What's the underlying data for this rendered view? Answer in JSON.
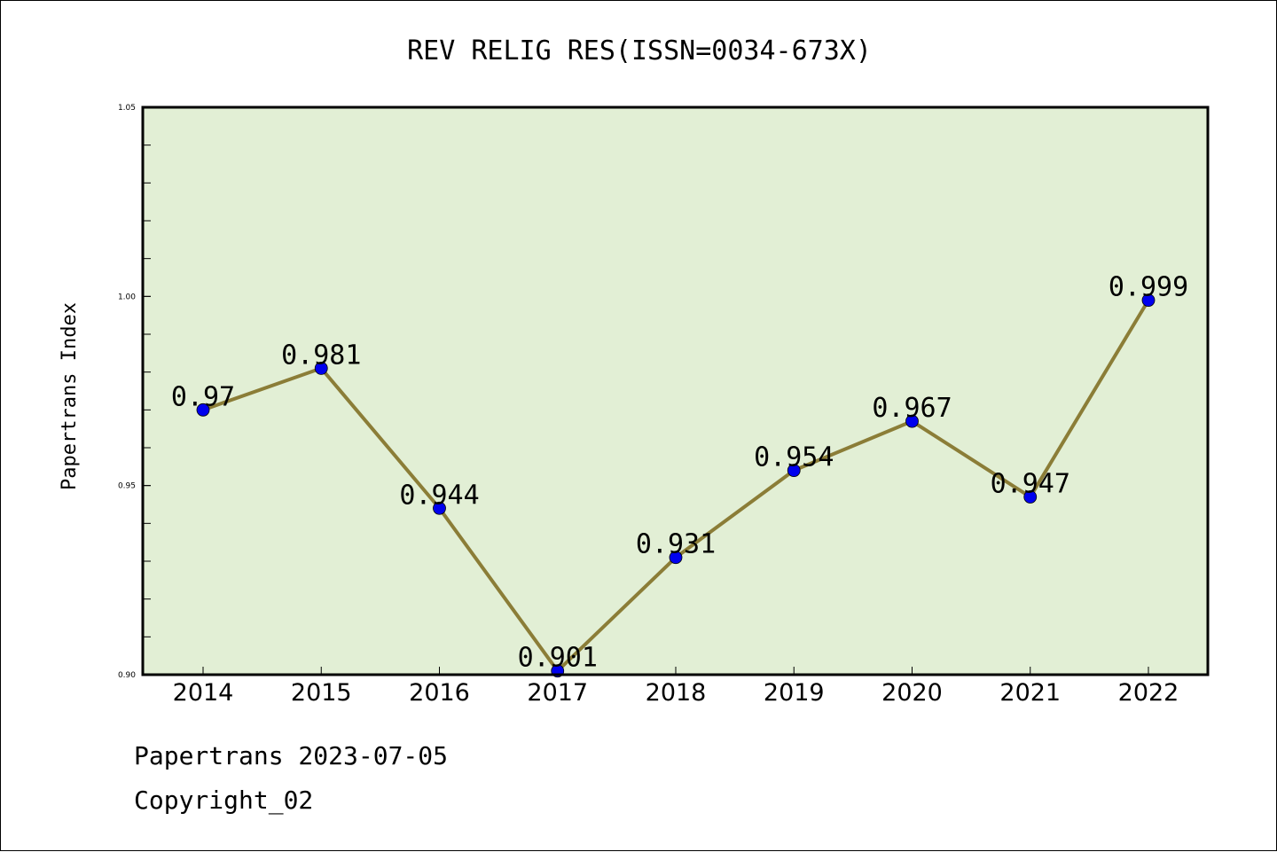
{
  "footer": {
    "date_line": "Papertrans 2023-07-05",
    "copyright": "Copyright_02"
  },
  "colors": {
    "plot_background": "#e2efd5",
    "line": "#8b7d37",
    "marker": "#0000ee",
    "frame": "#000000"
  },
  "chart_data": {
    "type": "line",
    "title": "REV RELIG RES(ISSN=0034-673X)",
    "xlabel": "",
    "ylabel": "Papertrans Index",
    "categories": [
      "2014",
      "2015",
      "2016",
      "2017",
      "2018",
      "2019",
      "2020",
      "2021",
      "2022"
    ],
    "series": [
      {
        "values": [
          0.97,
          0.981,
          0.944,
          0.901,
          0.931,
          0.954,
          0.967,
          0.947,
          0.999
        ],
        "labels": [
          "0.97",
          "0.981",
          "0.944",
          "0.901",
          "0.931",
          "0.954",
          "0.967",
          "0.947",
          "0.999"
        ]
      }
    ],
    "ylim": [
      0.9,
      1.05
    ],
    "yticks": [
      {
        "value": 0.9,
        "label": "0.90"
      },
      {
        "value": 0.95,
        "label": "0.95"
      },
      {
        "value": 1.0,
        "label": "1.00"
      },
      {
        "value": 1.05,
        "label": "1.05"
      }
    ],
    "minor_ytick_step": 0.01,
    "grid": false,
    "markers": true
  }
}
